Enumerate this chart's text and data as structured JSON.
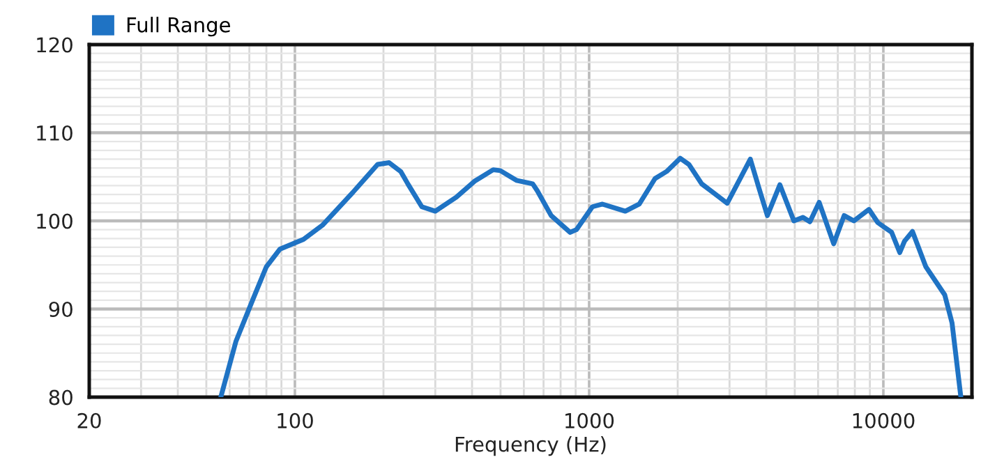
{
  "chart_data": {
    "type": "line",
    "xlabel": "Frequency (Hz)",
    "log": "x",
    "grid": true,
    "legend": "top left",
    "marker": "none",
    "line_style": "solid",
    "xlim": [
      20,
      20000
    ],
    "ylim": [
      80,
      120
    ],
    "xticks": [
      20,
      {
        "value": 30,
        "label": null
      },
      {
        "value": 40,
        "label": null
      },
      {
        "value": 50,
        "label": null
      },
      {
        "value": 60,
        "label": null
      },
      {
        "value": 70,
        "label": null
      },
      {
        "value": 80,
        "label": null
      },
      {
        "value": 90,
        "label": null
      },
      100,
      {
        "value": 200,
        "label": null
      },
      {
        "value": 300,
        "label": null
      },
      {
        "value": 400,
        "label": null
      },
      {
        "value": 500,
        "label": null
      },
      {
        "value": 600,
        "label": null
      },
      {
        "value": 700,
        "label": null
      },
      {
        "value": 800,
        "label": null
      },
      {
        "value": 900,
        "label": null
      },
      1000,
      {
        "value": 2000,
        "label": null
      },
      {
        "value": 3000,
        "label": null
      },
      {
        "value": 4000,
        "label": null
      },
      {
        "value": 5000,
        "label": null
      },
      {
        "value": 6000,
        "label": null
      },
      {
        "value": 7000,
        "label": null
      },
      {
        "value": 8000,
        "label": null
      },
      {
        "value": 9000,
        "label": null
      },
      10000,
      {
        "value": 20000,
        "label": null
      }
    ],
    "yticks": [
      80,
      {
        "value": 81,
        "label": null
      },
      {
        "value": 82,
        "label": null
      },
      {
        "value": 83,
        "label": null
      },
      {
        "value": 84,
        "label": null
      },
      {
        "value": 85,
        "label": null
      },
      {
        "value": 86,
        "label": null
      },
      {
        "value": 87,
        "label": null
      },
      {
        "value": 88,
        "label": null
      },
      {
        "value": 89,
        "label": null
      },
      90,
      {
        "value": 91,
        "label": null
      },
      {
        "value": 92,
        "label": null
      },
      {
        "value": 93,
        "label": null
      },
      {
        "value": 94,
        "label": null
      },
      {
        "value": 95,
        "label": null
      },
      {
        "value": 96,
        "label": null
      },
      {
        "value": 97,
        "label": null
      },
      {
        "value": 98,
        "label": null
      },
      {
        "value": 99,
        "label": null
      },
      100,
      {
        "value": 101,
        "label": null
      },
      {
        "value": 102,
        "label": null
      },
      {
        "value": 103,
        "label": null
      },
      {
        "value": 104,
        "label": null
      },
      {
        "value": 105,
        "label": null
      },
      {
        "value": 106,
        "label": null
      },
      {
        "value": 107,
        "label": null
      },
      {
        "value": 108,
        "label": null
      },
      {
        "value": 109,
        "label": null
      },
      110,
      {
        "value": 111,
        "label": null
      },
      {
        "value": 112,
        "label": null
      },
      {
        "value": 113,
        "label": null
      },
      {
        "value": 114,
        "label": null
      },
      {
        "value": 115,
        "label": null
      },
      {
        "value": 116,
        "label": null
      },
      {
        "value": 117,
        "label": null
      },
      {
        "value": 118,
        "label": null
      },
      {
        "value": 119,
        "label": null
      },
      120
    ],
    "series": [
      {
        "name": "Full Range",
        "color": "#1f73c4",
        "x": [
          56,
          63,
          72,
          80,
          89,
          107,
          124,
          159,
          191,
          209,
          229,
          242,
          270,
          300,
          354,
          408,
          472,
          499,
          566,
          643,
          667,
          743,
          861,
          905,
          1026,
          1110,
          1327,
          1480,
          1675,
          1833,
          2039,
          2185,
          2413,
          2643,
          2947,
          3531,
          3779,
          4035,
          4450,
          4964,
          5329,
          5629,
          6050,
          6780,
          7357,
          7940,
          8935,
          9577,
          10670,
          11370,
          11800,
          12560,
          13940,
          16170,
          17120,
          18340
        ],
        "values": [
          80,
          86.3,
          91.1,
          94.8,
          96.8,
          97.9,
          99.5,
          103.4,
          106.4,
          106.6,
          105.6,
          104.2,
          101.6,
          101.1,
          102.7,
          104.5,
          105.8,
          105.7,
          104.6,
          104.2,
          103.4,
          100.6,
          98.7,
          99.0,
          101.6,
          101.9,
          101.1,
          101.9,
          104.8,
          105.6,
          107.1,
          106.4,
          104.2,
          103.2,
          102.0,
          107.0,
          103.7,
          100.6,
          104.1,
          100.0,
          100.4,
          99.9,
          102.1,
          97.4,
          100.6,
          100.0,
          101.3,
          99.8,
          98.7,
          96.4,
          97.7,
          98.8,
          94.8,
          91.6,
          88.4,
          80
        ]
      }
    ]
  }
}
